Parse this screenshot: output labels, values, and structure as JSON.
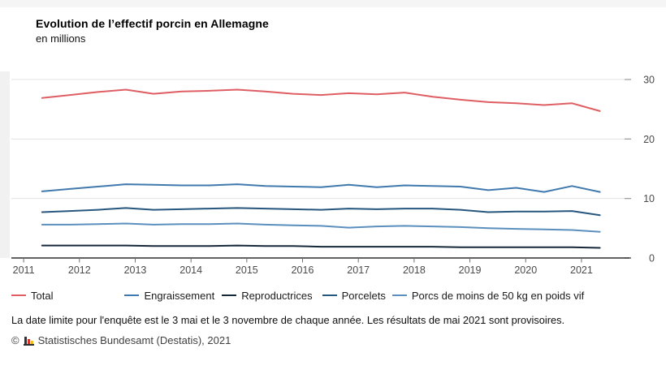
{
  "header": {
    "title": "Evolution de l’effectif porcin en Allemagne",
    "subtitle": "en millions"
  },
  "chart_data": {
    "type": "line",
    "title": "Evolution de l’effectif porcin en Allemagne",
    "ylabel": "en millions",
    "xlabel": "",
    "grid": true,
    "legend_position": "bottom",
    "xlim": [
      2010.78,
      2021.86
    ],
    "ylim": [
      0,
      31
    ],
    "x_ticks": [
      2011,
      2012,
      2013,
      2014,
      2015,
      2016,
      2017,
      2018,
      2019,
      2020,
      2021
    ],
    "y_ticks": [
      0,
      10,
      20,
      30
    ],
    "x": [
      2011.33,
      2011.83,
      2012.33,
      2012.83,
      2013.33,
      2013.83,
      2014.33,
      2014.83,
      2015.33,
      2015.83,
      2016.33,
      2016.83,
      2017.33,
      2017.83,
      2018.33,
      2018.83,
      2019.33,
      2019.83,
      2020.33,
      2020.83,
      2021.33
    ],
    "x_note": "two surveys per year: 3 May and 3 November",
    "series": [
      {
        "name": "Total",
        "color": "#df5e63",
        "values": [
          26.9,
          27.4,
          27.9,
          28.3,
          27.6,
          28.0,
          28.1,
          28.3,
          28.0,
          27.6,
          27.4,
          27.7,
          27.5,
          27.8,
          27.1,
          26.6,
          26.2,
          26.0,
          25.7,
          26.0,
          24.7
        ]
      },
      {
        "name": "Engraissement",
        "color": "#4079ad",
        "values": [
          11.2,
          11.6,
          12.0,
          12.4,
          12.3,
          12.2,
          12.2,
          12.4,
          12.1,
          12.0,
          11.9,
          12.3,
          11.9,
          12.2,
          12.1,
          12.0,
          11.4,
          11.8,
          11.1,
          12.1,
          11.1
        ]
      },
      {
        "name": "Reproductrices",
        "color": "#16293a",
        "values": [
          2.1,
          2.1,
          2.1,
          2.1,
          2.0,
          2.0,
          2.0,
          2.1,
          2.0,
          2.0,
          1.9,
          1.9,
          1.9,
          1.9,
          1.9,
          1.8,
          1.8,
          1.8,
          1.8,
          1.8,
          1.7
        ]
      },
      {
        "name": "Porcelets",
        "color": "#27567f",
        "values": [
          7.7,
          7.9,
          8.1,
          8.4,
          8.1,
          8.2,
          8.3,
          8.4,
          8.3,
          8.2,
          8.1,
          8.3,
          8.2,
          8.3,
          8.3,
          8.1,
          7.7,
          7.8,
          7.8,
          7.9,
          7.2
        ]
      },
      {
        "name": "Porcs de moins de 50 kg en poids vif",
        "color": "#5b8fbe",
        "values": [
          5.6,
          5.6,
          5.7,
          5.8,
          5.6,
          5.7,
          5.7,
          5.8,
          5.6,
          5.5,
          5.4,
          5.1,
          5.3,
          5.4,
          5.3,
          5.2,
          5.0,
          4.9,
          4.8,
          4.7,
          4.4
        ]
      }
    ],
    "colors": {
      "grid": "#e3e3e3",
      "axis": "#2f2f2f",
      "tick": "#6e6e6e",
      "tick_label": "#4a4a4a"
    }
  },
  "footnote": "La date limite pour l'enquête est le 3 mai et le 3 novembre de chaque année. Les résultats de mai 2021 sont provisoires.",
  "source": {
    "symbol": "©",
    "logo": "destatis-bars-icon",
    "text": "Statistisches Bundesamt (Destatis), 2021"
  }
}
